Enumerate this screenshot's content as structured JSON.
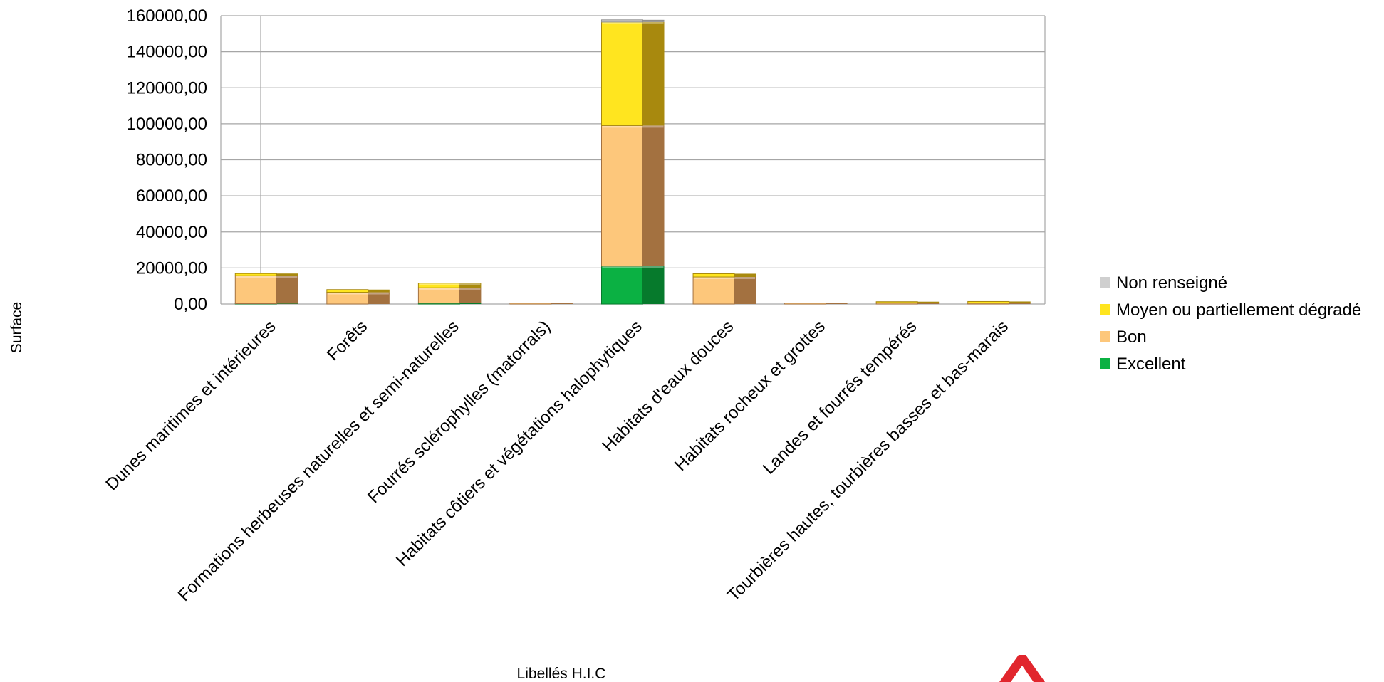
{
  "chart_data": {
    "type": "bar",
    "stacked": true,
    "title": "",
    "xlabel": "Libellés H.I.C",
    "ylabel": "Surface",
    "ylim": [
      0,
      160000
    ],
    "yticks": [
      "0,00",
      "20000,00",
      "40000,00",
      "60000,00",
      "80000,00",
      "100000,00",
      "120000,00",
      "140000,00",
      "160000,00"
    ],
    "grid": true,
    "legend_position": "right",
    "categories": [
      "Dunes maritimes et intérieures",
      "Forêts",
      "Formations herbeuses naturelles et semi-naturelles",
      "Fourrés sclérophylles (matorrals)",
      "Habitats côtiers et végétations halophytiques",
      "Habitats d'eaux douces",
      "Habitats rocheux et grottes",
      "Landes et fourrés tempérés",
      "Tourbières hautes, tourbières basses et bas-marais"
    ],
    "series": [
      {
        "name": "Excellent",
        "color": "#0BB143",
        "dark": "#067A2C",
        "values": [
          200,
          0,
          500,
          0,
          21000,
          0,
          0,
          0,
          0
        ]
      },
      {
        "name": "Bon",
        "color": "#FDC77B",
        "dark": "#A37140",
        "values": [
          15500,
          6500,
          8500,
          100,
          78000,
          15000,
          100,
          700,
          500
        ]
      },
      {
        "name": "Moyen ou partiellement dégradé",
        "color": "#FFE51F",
        "dark": "#A8890E",
        "values": [
          1200,
          1500,
          2500,
          0,
          57500,
          1800,
          0,
          400,
          900
        ]
      },
      {
        "name": "Non renseigné",
        "color": "#CFCFCF",
        "dark": "#8F8F8F",
        "values": [
          0,
          0,
          0,
          0,
          1200,
          0,
          0,
          0,
          0
        ]
      }
    ],
    "legend_order": [
      "Non renseigné",
      "Moyen ou partiellement dégradé",
      "Bon",
      "Excellent"
    ]
  },
  "logo": {
    "name": "red-chevron-logo",
    "color": "#E1262D"
  }
}
